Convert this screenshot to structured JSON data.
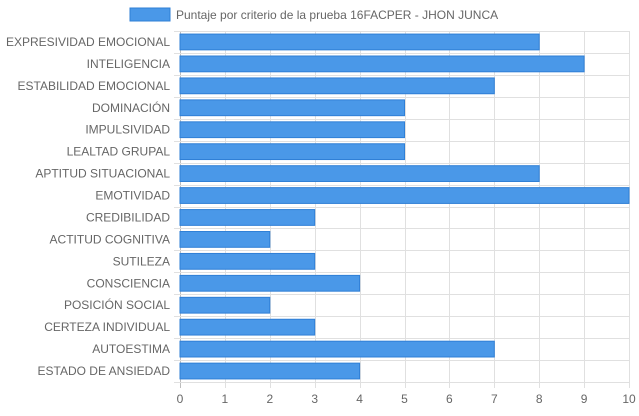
{
  "chart_data": {
    "type": "bar",
    "orientation": "horizontal",
    "title": "",
    "xlabel": "",
    "ylabel": "",
    "xlim": [
      0,
      10
    ],
    "x_ticks": [
      "0",
      "1",
      "2",
      "3",
      "4",
      "5",
      "6",
      "7",
      "8",
      "9",
      "10"
    ],
    "grid": true,
    "legend_position": "top",
    "categories": [
      "EXPRESIVIDAD EMOCIONAL",
      "INTELIGENCIA",
      "ESTABILIDAD EMOCIONAL",
      "DOMINACIÓN",
      "IMPULSIVIDAD",
      "LEALTAD GRUPAL",
      "APTITUD SITUACIONAL",
      "EMOTIVIDAD",
      "CREDIBILIDAD",
      "ACTITUD COGNITIVA",
      "SUTILEZA",
      "CONSCIENCIA",
      "POSICIÓN SOCIAL",
      "CERTEZA INDIVIDUAL",
      "AUTOESTIMA",
      "ESTADO DE ANSIEDAD"
    ],
    "series": [
      {
        "name": "Puntaje por criterio de la prueba 16FACPER - JHON JUNCA",
        "color": "#4a98e8",
        "border_color": "#2f7fd6",
        "values": [
          8,
          9,
          7,
          5,
          5,
          5,
          8,
          10,
          3,
          2,
          3,
          4,
          2,
          3,
          7,
          4
        ]
      }
    ]
  }
}
